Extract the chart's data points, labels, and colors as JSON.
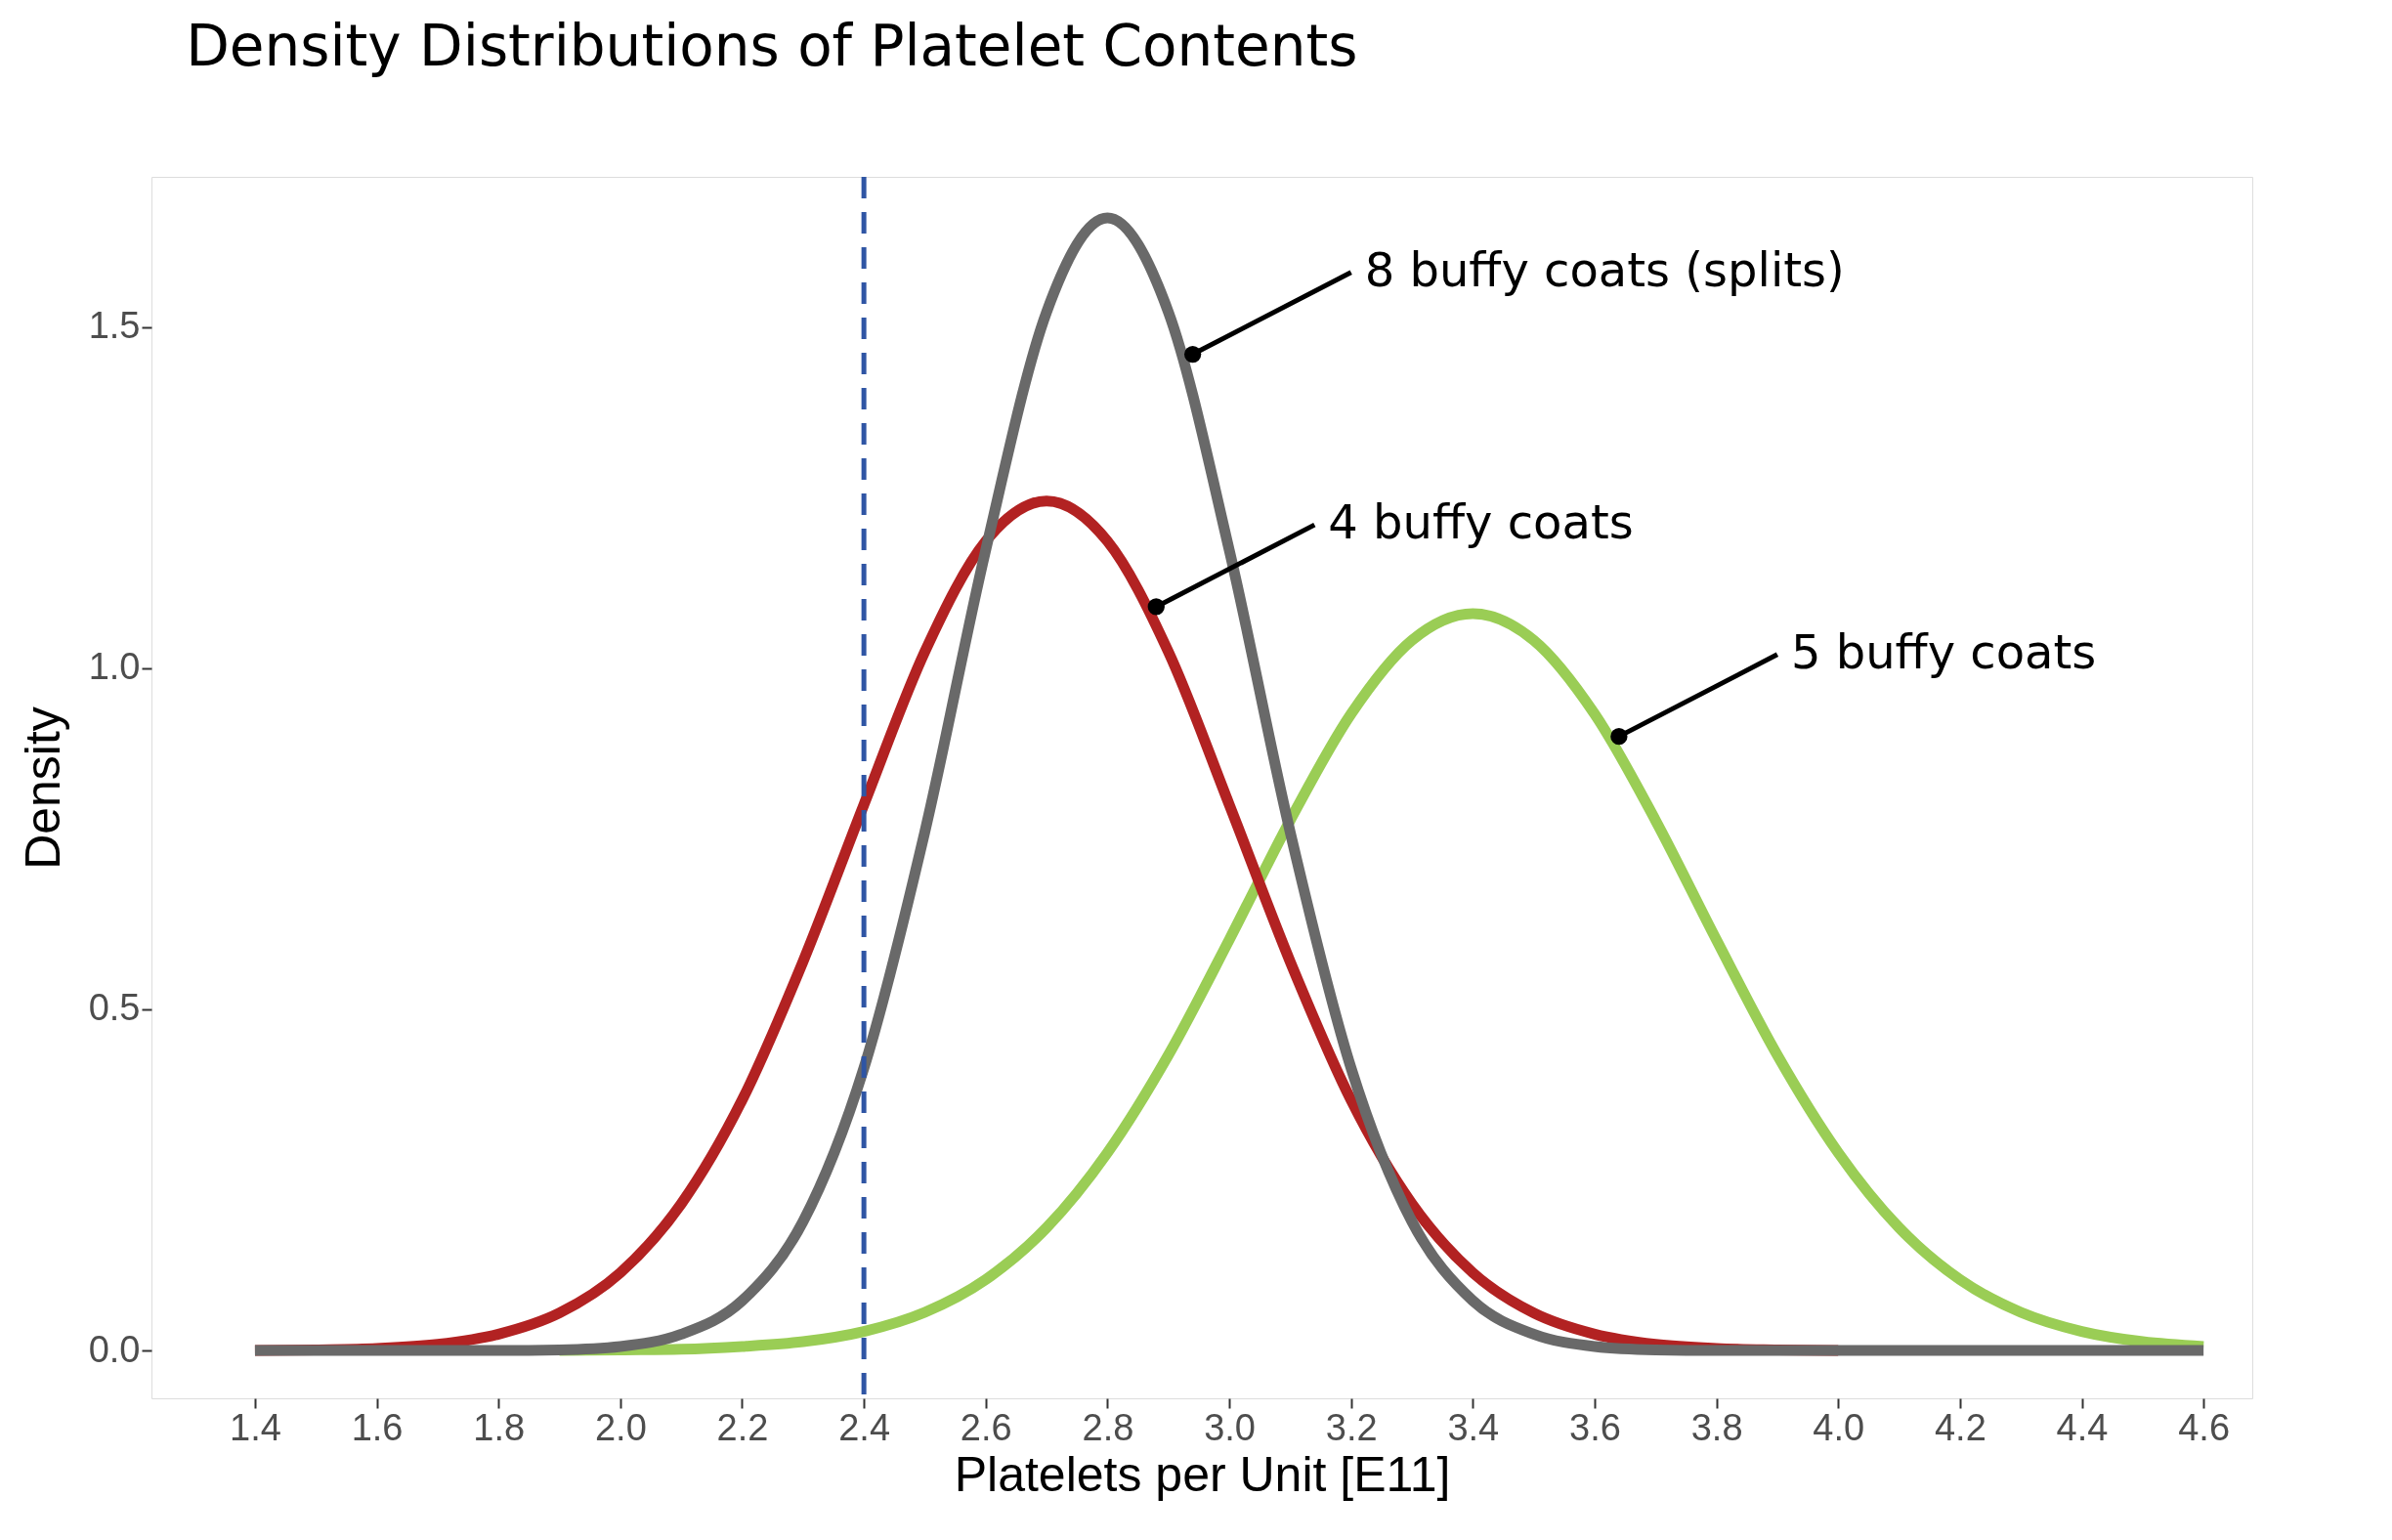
{
  "chart_data": {
    "type": "line",
    "title": "Density Distributions of Platelet Contents",
    "xlabel": "Platelets per Unit [E11]",
    "ylabel": "Density",
    "x": [
      1.4,
      1.5,
      1.6,
      1.7,
      1.8,
      1.9,
      2.0,
      2.1,
      2.2,
      2.3,
      2.4,
      2.5,
      2.6,
      2.7,
      2.8,
      2.9,
      3.0,
      3.1,
      3.2,
      3.3,
      3.4,
      3.5,
      3.6,
      3.7,
      3.8,
      3.9,
      4.0,
      4.1,
      4.2,
      4.3,
      4.4,
      4.5,
      4.6
    ],
    "series": [
      {
        "color": "#9acd55",
        "values": [
          null,
          null,
          null,
          null,
          null,
          0,
          0.001,
          0.002,
          0.006,
          0.013,
          0.028,
          0.056,
          0.104,
          0.18,
          0.29,
          0.433,
          0.602,
          0.777,
          0.933,
          1.041,
          1.08,
          1.041,
          0.933,
          0.777,
          0.602,
          0.433,
          0.29,
          0.18,
          0.104,
          0.056,
          0.028,
          0.013,
          0.006
        ]
      },
      {
        "color": "#b22222",
        "values": [
          0,
          0.001,
          0.003,
          0.009,
          0.024,
          0.055,
          0.114,
          0.215,
          0.367,
          0.57,
          0.8,
          1.024,
          1.186,
          1.245,
          1.186,
          1.024,
          0.8,
          0.57,
          0.367,
          0.215,
          0.114,
          0.055,
          0.024,
          0.009,
          0.003,
          0.001,
          0,
          null,
          null,
          null,
          null,
          null,
          null
        ]
      },
      {
        "color": "#696969",
        "values": [
          0,
          0,
          0,
          0,
          0,
          0.001,
          0.006,
          0.024,
          0.073,
          0.189,
          0.414,
          0.76,
          1.173,
          1.522,
          1.66,
          1.522,
          1.173,
          0.76,
          0.414,
          0.189,
          0.073,
          0.024,
          0.006,
          0.001,
          0,
          0,
          0,
          0,
          0,
          0,
          0,
          0,
          0
        ]
      }
    ],
    "xlim": [
      1.23,
      4.68
    ],
    "ylim": [
      -0.07,
      1.72
    ],
    "xticks": [
      1.4,
      1.6,
      1.8,
      {
        "value": 2,
        "label": "2.0"
      },
      2.2,
      2.4,
      2.6,
      2.8,
      {
        "value": 3,
        "label": "3.0"
      },
      3.2,
      3.4,
      3.6,
      3.8,
      {
        "value": 4,
        "label": "4.0"
      },
      4.2,
      4.4,
      4.6
    ],
    "yticks": [
      {
        "value": 0,
        "label": "0.0"
      },
      0.5,
      {
        "value": 1,
        "label": "1.0"
      },
      1.5
    ],
    "ref_lines": [
      {
        "axis": "x",
        "value": 2.4,
        "color": "#2f55a4",
        "line_style": "dashed"
      }
    ],
    "annotations": [
      {
        "text": "8 buffy coats (splits)",
        "x": 2.94,
        "y": 1.46
      },
      {
        "text": "4 buffy coats",
        "x": 2.88,
        "y": 1.09
      },
      {
        "text": "5 buffy coats",
        "x": 3.64,
        "y": 0.9
      }
    ],
    "grid": false,
    "marker": "none",
    "line_style": "solid"
  }
}
